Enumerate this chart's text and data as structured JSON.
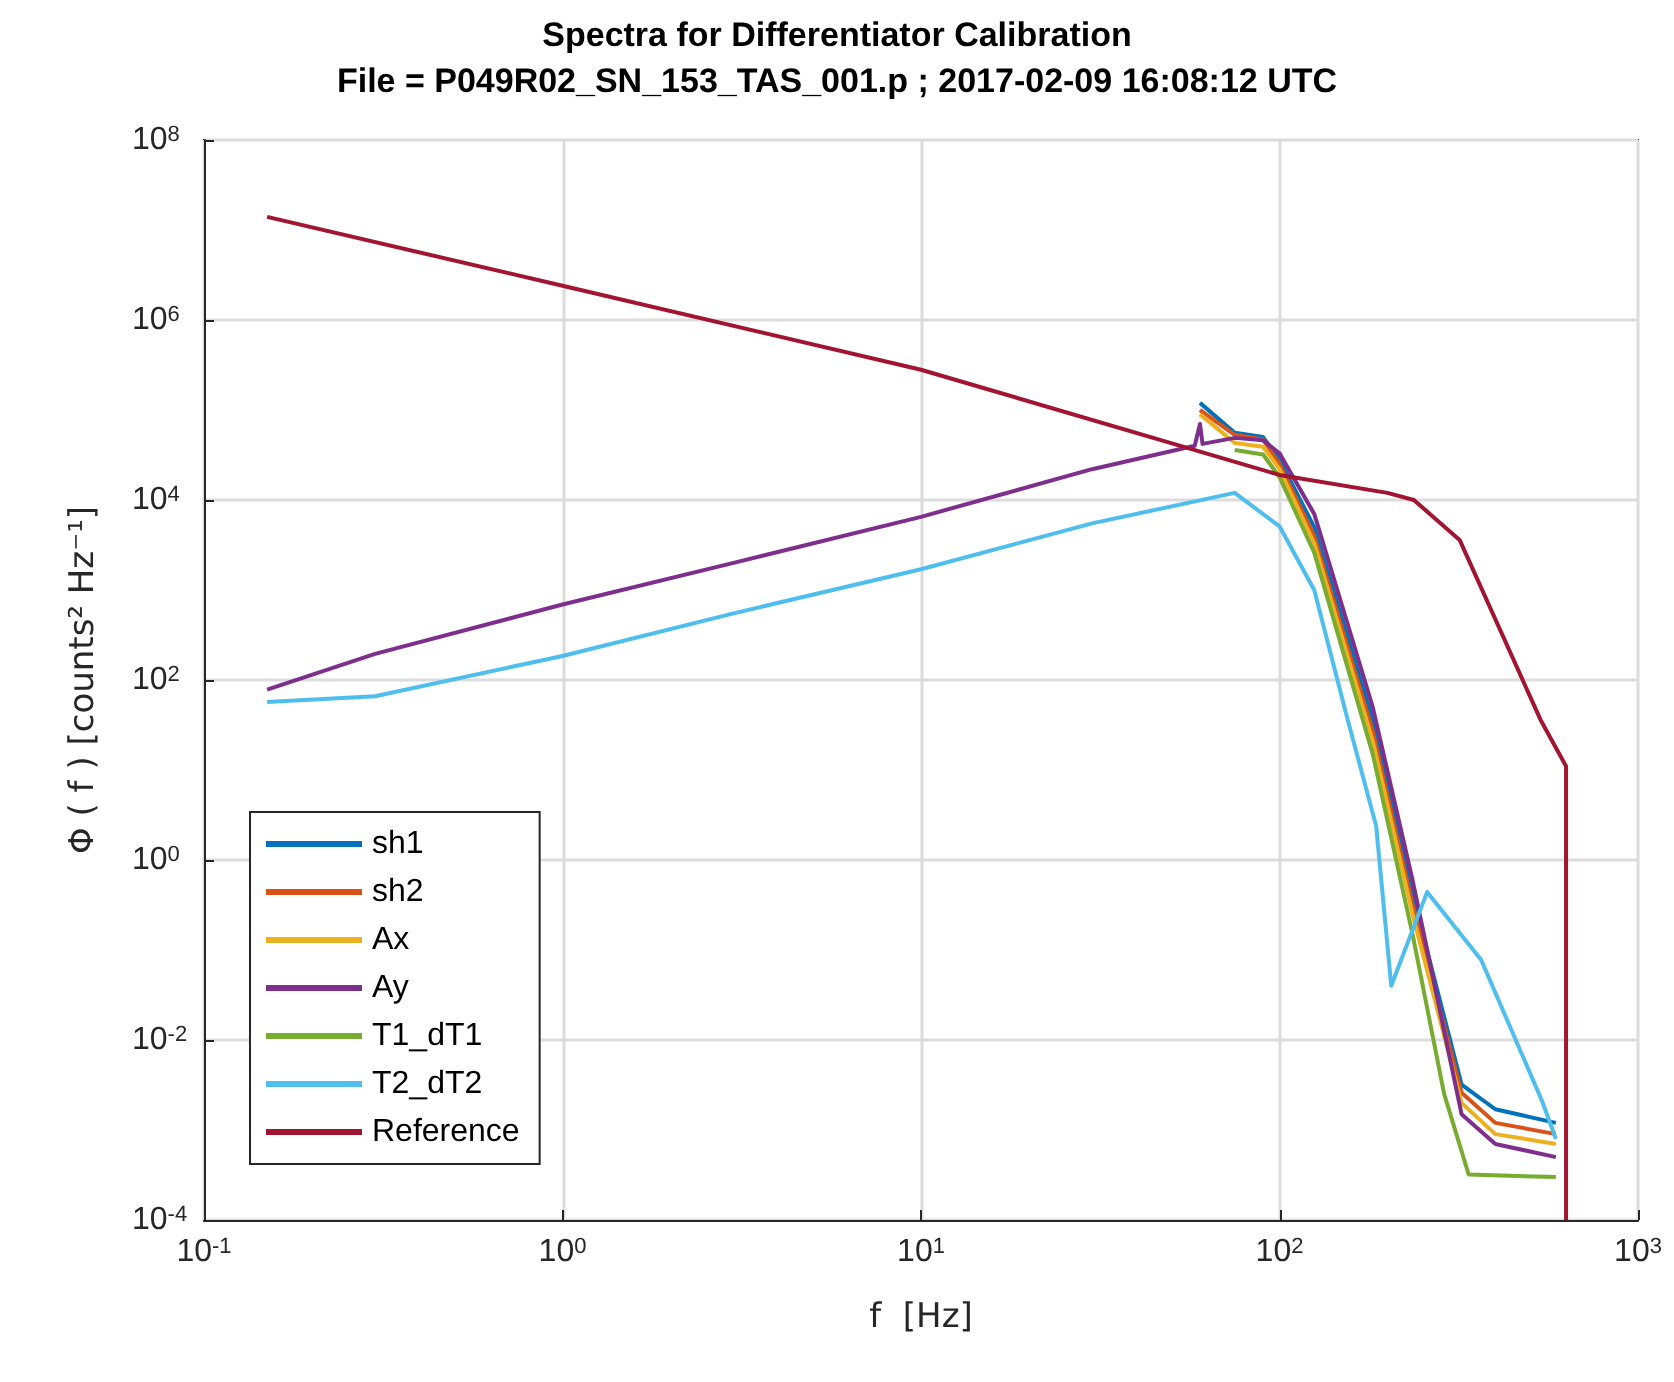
{
  "chart_data": {
    "type": "line",
    "title": "Spectra for Differentiator Calibration",
    "subtitle": "File = P049R02_SN_153_TAS_001.p ; 2017-02-09 16:08:12 UTC",
    "xlabel": "f  [Hz]",
    "ylabel": "Φ ( f ) [counts² Hz⁻¹]",
    "log": "xy",
    "grid": true,
    "legend": "bottom left",
    "marker": "none",
    "line_style": "solid",
    "xlim": [
      0.1,
      1000
    ],
    "ylim": [
      0.0001,
      100000000
    ],
    "xticks": [
      {
        "value": 0.1,
        "label": "10$^{-1}$"
      },
      {
        "value": 1,
        "label": "10$^{0}$"
      },
      {
        "value": 10,
        "label": "10$^{1}$"
      },
      {
        "value": 100,
        "label": "10$^{2}$"
      },
      {
        "value": 1000,
        "label": "10$^{3}$"
      }
    ],
    "yticks": [
      {
        "value": 0.0001,
        "label": "10$^{-4}$"
      },
      {
        "value": 0.01,
        "label": "10$^{-2}$"
      },
      {
        "value": 1,
        "label": "10$^{0}$"
      },
      {
        "value": 100,
        "label": "10$^{2}$"
      },
      {
        "value": 10000,
        "label": "10$^{4}$"
      },
      {
        "value": 1000000,
        "label": "10$^{6}$"
      },
      {
        "value": 100000000,
        "label": "10$^{8}$"
      }
    ],
    "series": [
      {
        "name": "sh1",
        "color": "#0072bd",
        "x": [
          60,
          75,
          90,
          100,
          125,
          182,
          235,
          322,
          400,
          590
        ],
        "values": [
          120000,
          56000,
          50000,
          28000,
          5000,
          36,
          0.42,
          0.0032,
          0.0017,
          0.0012
        ]
      },
      {
        "name": "sh2",
        "color": "#d95319",
        "x": [
          60,
          75,
          90,
          100,
          125,
          182,
          235,
          322,
          400,
          590
        ],
        "values": [
          100000,
          53000,
          47000,
          25000,
          4000,
          27,
          0.32,
          0.0026,
          0.0012,
          0.0009
        ]
      },
      {
        "name": "Ax",
        "color": "#edb120",
        "x": [
          60,
          75,
          90,
          100,
          125,
          182,
          235,
          322,
          400,
          590
        ],
        "values": [
          90000,
          43000,
          39000,
          22000,
          3300,
          21,
          0.25,
          0.002,
          0.0009,
          0.0007
        ]
      },
      {
        "name": "Ay",
        "color": "#7e2f8e",
        "x": [
          0.15,
          0.3,
          1,
          3,
          10,
          30,
          58,
          60,
          61,
          75,
          90,
          100,
          125,
          182,
          235,
          322,
          400,
          590
        ],
        "values": [
          78,
          195,
          690,
          2000,
          6500,
          22000,
          40000,
          70000,
          42000,
          49000,
          46000,
          33000,
          7000,
          50,
          0.6,
          0.0015,
          0.0007,
          0.0005
        ]
      },
      {
        "name": "T1_dT1",
        "color": "#77ac30",
        "x": [
          75,
          90,
          100,
          125,
          182,
          235,
          288,
          337,
          590
        ],
        "values": [
          36000,
          32000,
          18000,
          2600,
          15,
          0.15,
          0.0025,
          0.00032,
          0.0003
        ]
      },
      {
        "name": "T2_dT2",
        "color": "#4dbeee",
        "x": [
          0.15,
          0.3,
          1,
          3,
          10,
          30,
          75,
          100,
          125,
          155,
          186,
          205,
          258,
          365,
          540,
          590
        ],
        "values": [
          57,
          66,
          185,
          550,
          1700,
          5500,
          12000,
          5100,
          1000,
          36,
          2.4,
          0.04,
          0.44,
          0.078,
          0.0021,
          0.0008
        ]
      },
      {
        "name": "Reference",
        "color": "#a2142f",
        "x": [
          0.15,
          1,
          10,
          100,
          200,
          237,
          318,
          535,
          630,
          630
        ],
        "values": [
          14000000,
          2400000,
          280000,
          19000,
          12000,
          10000,
          3600,
          36,
          11,
          0.0001
        ]
      }
    ]
  }
}
